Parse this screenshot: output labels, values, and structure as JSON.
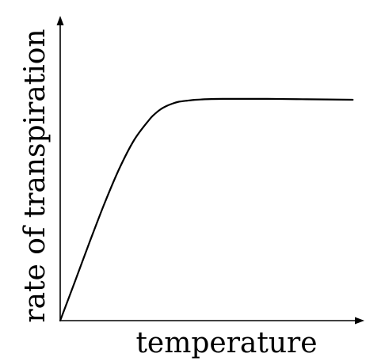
{
  "chart_data": {
    "type": "line",
    "title": "",
    "xlabel": "temperature",
    "ylabel": "rate of transpiration",
    "xlim": [
      0,
      10
    ],
    "ylim": [
      0,
      10
    ],
    "grid": false,
    "ticks": false,
    "series": [
      {
        "x": [
          0,
          0.5,
          1.0,
          1.5,
          2.0,
          2.5,
          3.0,
          3.2,
          3.4,
          3.6,
          3.8,
          4.0,
          4.3,
          4.6,
          5.0,
          5.5,
          6.0,
          7.0,
          8.0,
          9.0,
          9.9
        ],
        "y": [
          0,
          1.32,
          2.66,
          3.95,
          5.12,
          6.08,
          6.75,
          6.96,
          7.12,
          7.23,
          7.31,
          7.37,
          7.41,
          7.44,
          7.46,
          7.47,
          7.47,
          7.47,
          7.46,
          7.45,
          7.44
        ]
      }
    ],
    "colors": {
      "line": "#000000",
      "axes": "#000000",
      "background": "#ffffff"
    }
  }
}
